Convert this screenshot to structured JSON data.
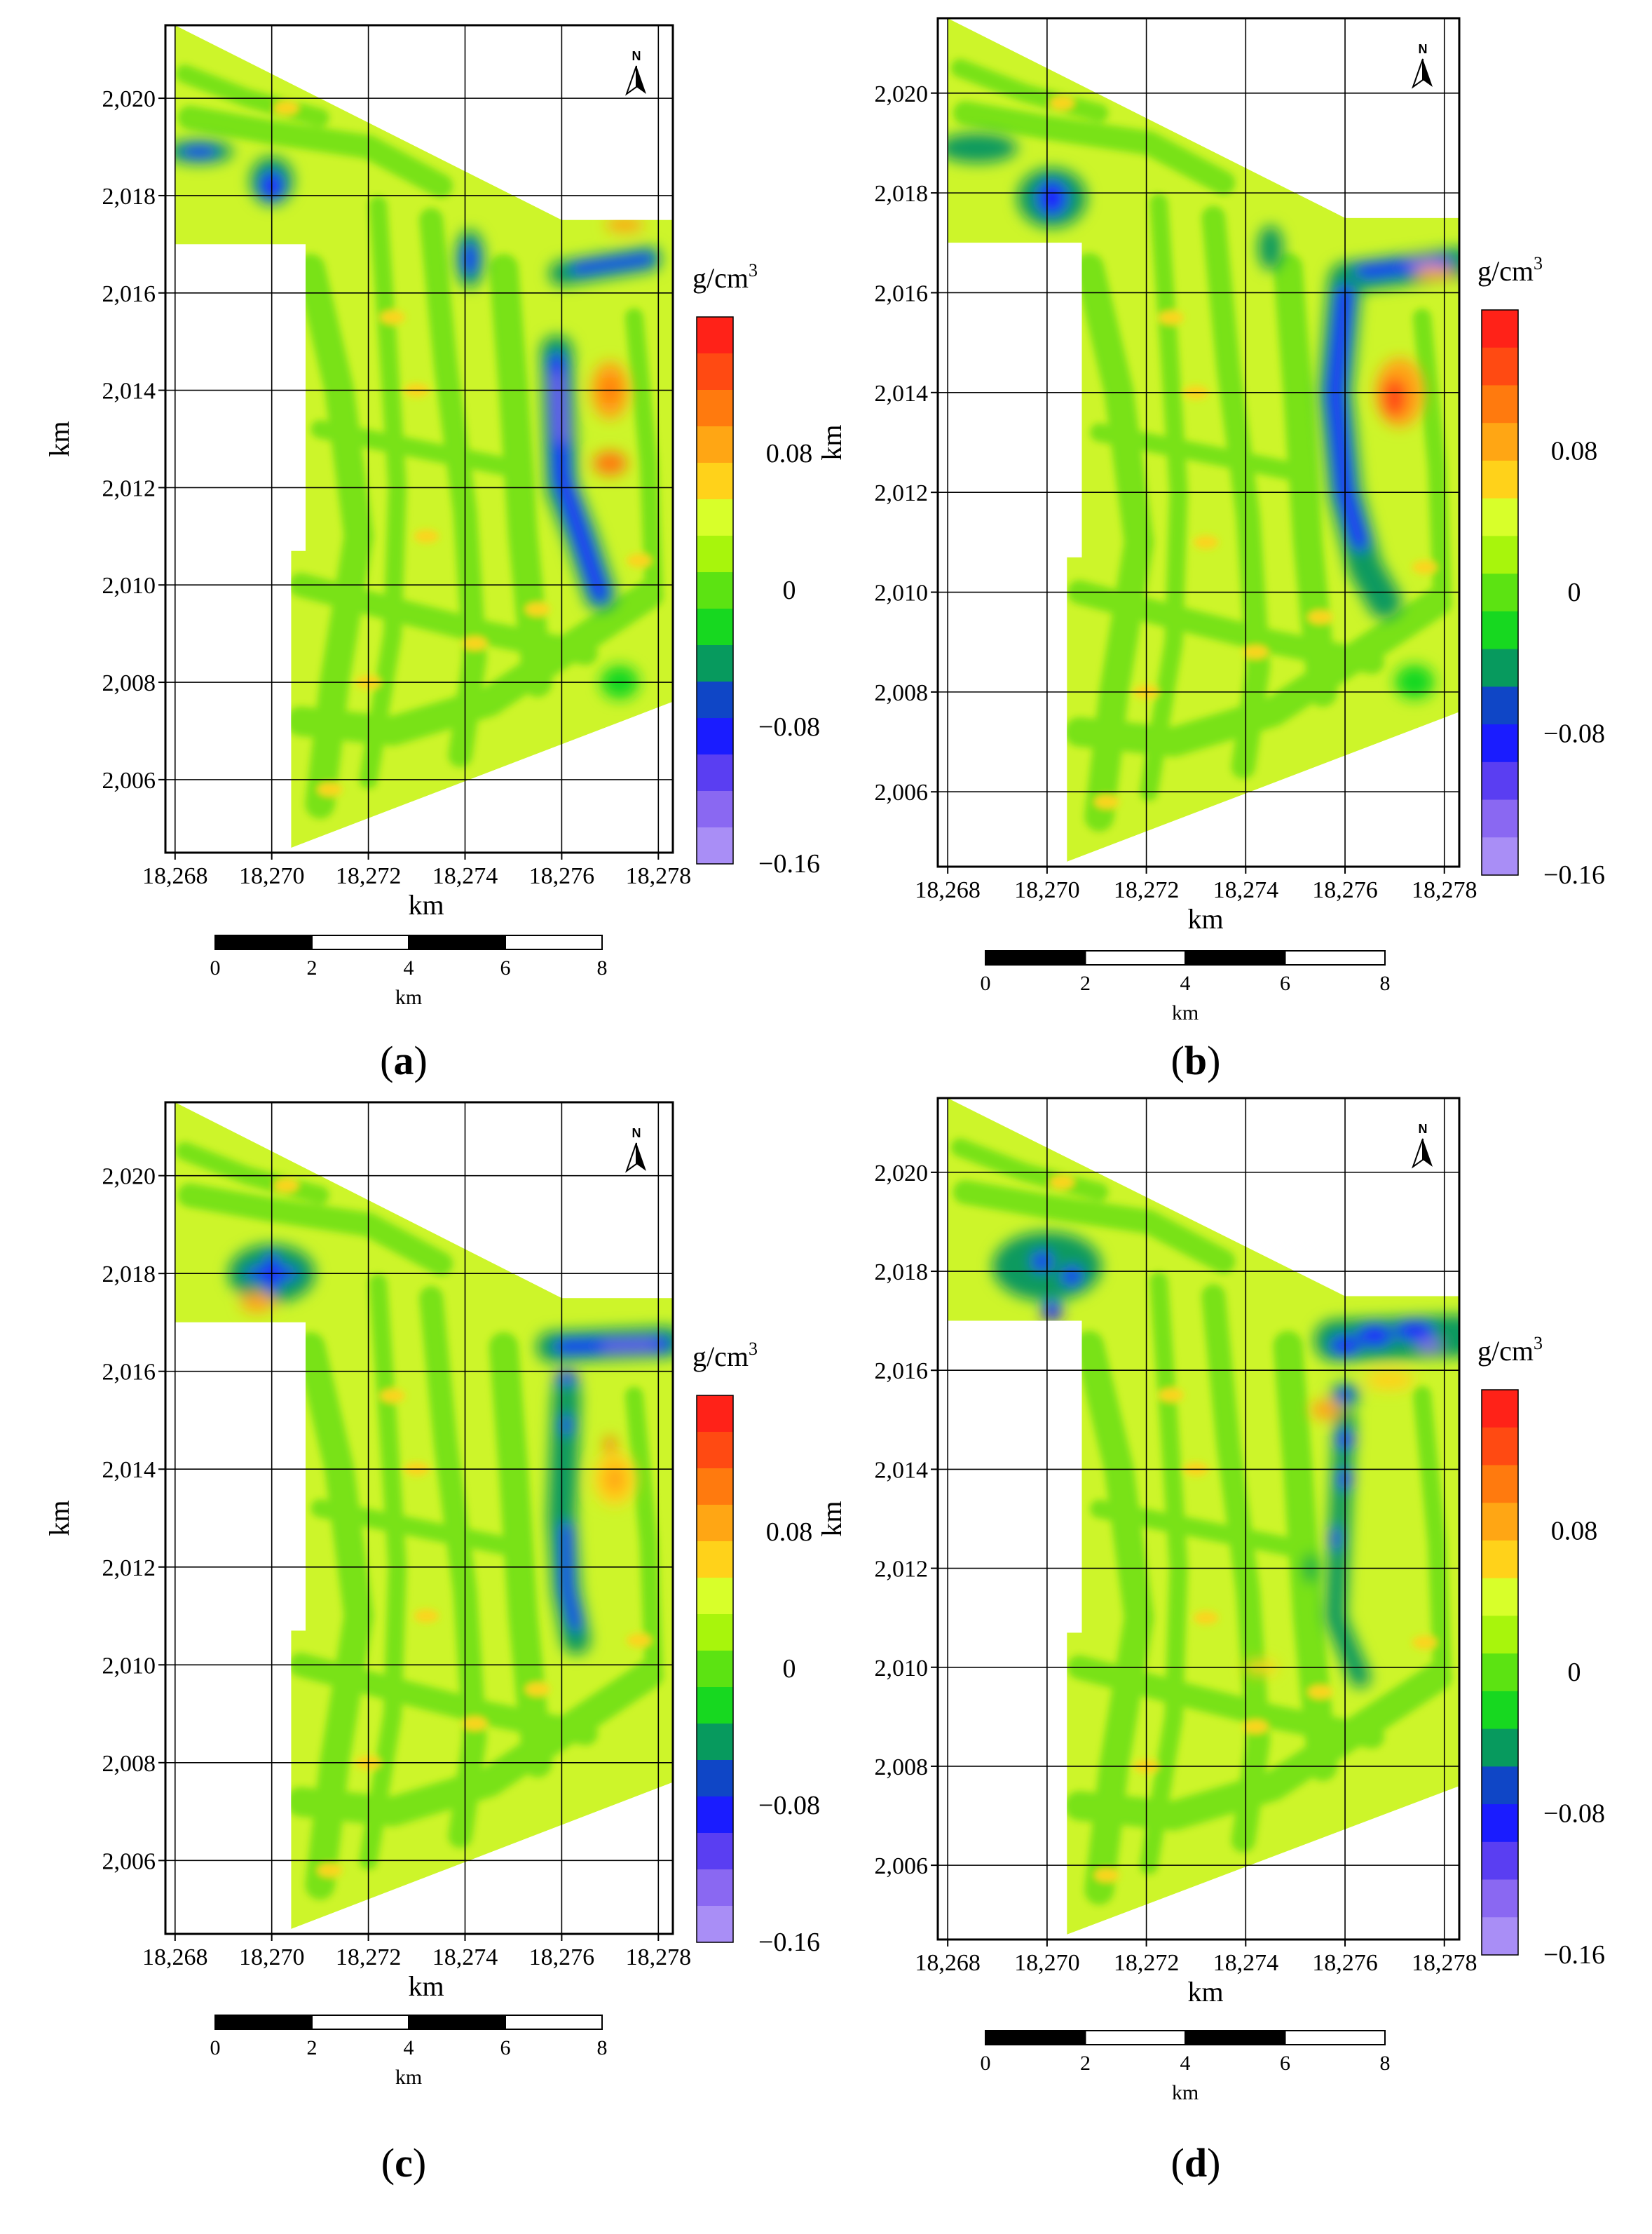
{
  "figure": {
    "panels": [
      {
        "id": "a",
        "caption": "a"
      },
      {
        "id": "b",
        "caption": "b"
      },
      {
        "id": "c",
        "caption": "c"
      },
      {
        "id": "d",
        "caption": "d"
      }
    ],
    "x_axis": {
      "label": "km",
      "ticks": [
        18268,
        18270,
        18272,
        18274,
        18276,
        18278
      ],
      "tick_labels": [
        "18,268",
        "18,270",
        "18,272",
        "18,274",
        "18,276",
        "18,278"
      ],
      "range": [
        18267.8,
        18278.3
      ]
    },
    "y_axis": {
      "label": "km",
      "ticks": [
        2006,
        2008,
        2010,
        2012,
        2014,
        2016,
        2018,
        2020
      ],
      "tick_labels": [
        "2,006",
        "2,008",
        "2,010",
        "2,012",
        "2,014",
        "2,016",
        "2,018",
        "2,020"
      ],
      "range": [
        2004.5,
        2021.5
      ]
    },
    "north_arrow": {
      "label": "N",
      "icon": "north-arrow-icon"
    },
    "colorbar": {
      "unit_base": "g/cm",
      "unit_exp": "3",
      "tick_labels": [
        "0.08",
        "0",
        "−0.08",
        "−0.16"
      ],
      "tick_values": [
        0.08,
        0,
        -0.08,
        -0.16
      ],
      "range": [
        -0.16,
        0.16
      ],
      "colors": [
        "#ff2218",
        "#ff4a12",
        "#ff7a0e",
        "#ffa614",
        "#ffd21a",
        "#d8ff2a",
        "#a8f50c",
        "#5ce312",
        "#17d820",
        "#079a5e",
        "#0f46c6",
        "#1a1cff",
        "#5a3ef2",
        "#8a68f2",
        "#a98ef6"
      ]
    },
    "scale_bar": {
      "labels": [
        "0",
        "2",
        "4",
        "6",
        "8"
      ],
      "unit": "km"
    }
  }
}
